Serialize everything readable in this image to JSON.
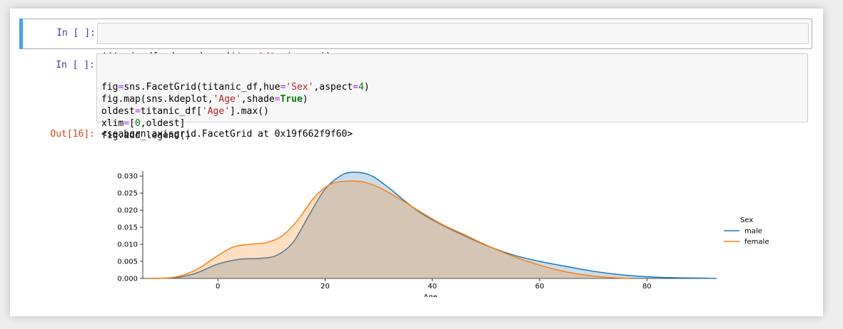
{
  "cells": [
    {
      "prompt": "In [ ]:",
      "code_tokens": [
        {
          "t": "titanic_df"
        },
        {
          "t": "=",
          "c": "op"
        },
        {
          "t": "pd.read_csv("
        },
        {
          "t": "'input/train.csv'",
          "c": "str"
        },
        {
          "t": ")"
        }
      ]
    },
    {
      "prompt": "In [ ]:",
      "code_lines": [
        [
          {
            "t": "fig"
          },
          {
            "t": "=",
            "c": "op"
          },
          {
            "t": "sns.FacetGrid(titanic_df,hue"
          },
          {
            "t": "=",
            "c": "op"
          },
          {
            "t": "'Sex'",
            "c": "str"
          },
          {
            "t": ",aspect"
          },
          {
            "t": "=",
            "c": "op"
          },
          {
            "t": "4",
            "c": "num"
          },
          {
            "t": ")"
          }
        ],
        [
          {
            "t": "fig.map(sns.kdeplot,"
          },
          {
            "t": "'Age'",
            "c": "str"
          },
          {
            "t": ",shade"
          },
          {
            "t": "=",
            "c": "op"
          },
          {
            "t": "True",
            "c": "kw"
          },
          {
            "t": ")"
          }
        ],
        [
          {
            "t": "oldest"
          },
          {
            "t": "=",
            "c": "op"
          },
          {
            "t": "titanic_df["
          },
          {
            "t": "'Age'",
            "c": "str"
          },
          {
            "t": "].max()"
          }
        ],
        [
          {
            "t": "xlim"
          },
          {
            "t": "=",
            "c": "op"
          },
          {
            "t": "["
          },
          {
            "t": "0",
            "c": "num"
          },
          {
            "t": ",oldest]"
          }
        ],
        [
          {
            "t": "fig.add_legend()"
          }
        ]
      ]
    }
  ],
  "output": {
    "prompt": "Out[16]:",
    "text": "<seaborn.axisgrid.FacetGrid at 0x19f662f9f60>"
  },
  "colors": {
    "male": "#1f77b4",
    "female": "#ff7f0e"
  },
  "chart_data": {
    "type": "area",
    "xlabel": "Age",
    "ylabel": "",
    "xlim": [
      -14,
      93
    ],
    "ylim": [
      0,
      0.0315
    ],
    "xticks": [
      0,
      20,
      40,
      60,
      80
    ],
    "yticks": [
      0.0,
      0.005,
      0.01,
      0.015,
      0.02,
      0.025,
      0.03
    ],
    "ytick_labels": [
      "0.000",
      "0.005",
      "0.010",
      "0.015",
      "0.020",
      "0.025",
      "0.030"
    ],
    "legend": {
      "title": "Sex",
      "position": "right"
    },
    "series": [
      {
        "name": "male",
        "x": [
          -13,
          -8,
          -4,
          0,
          4,
          8,
          11,
          14,
          17,
          20,
          23,
          25,
          27,
          29,
          32,
          35,
          38,
          42,
          46,
          50,
          55,
          60,
          65,
          70,
          75,
          80,
          85,
          90,
          93
        ],
        "y": [
          0,
          0.0002,
          0.0016,
          0.0042,
          0.0056,
          0.0059,
          0.0068,
          0.0105,
          0.0185,
          0.0262,
          0.0302,
          0.0311,
          0.0309,
          0.0298,
          0.0264,
          0.0225,
          0.019,
          0.0155,
          0.0125,
          0.0097,
          0.0069,
          0.005,
          0.0035,
          0.0021,
          0.0011,
          0.0005,
          0.0002,
          0.0001,
          0
        ]
      },
      {
        "name": "female",
        "x": [
          -13,
          -8,
          -4,
          0,
          3,
          6,
          9,
          12,
          15,
          18,
          21,
          24,
          27,
          30,
          34,
          38,
          42,
          46,
          50,
          55,
          60,
          65,
          70,
          74,
          77
        ],
        "y": [
          0,
          0.0004,
          0.0026,
          0.0067,
          0.0093,
          0.01,
          0.0105,
          0.0125,
          0.0173,
          0.0238,
          0.0276,
          0.0285,
          0.0283,
          0.0267,
          0.0232,
          0.0193,
          0.0157,
          0.0128,
          0.0098,
          0.0065,
          0.0039,
          0.0019,
          0.0007,
          0.0002,
          0
        ]
      }
    ]
  }
}
